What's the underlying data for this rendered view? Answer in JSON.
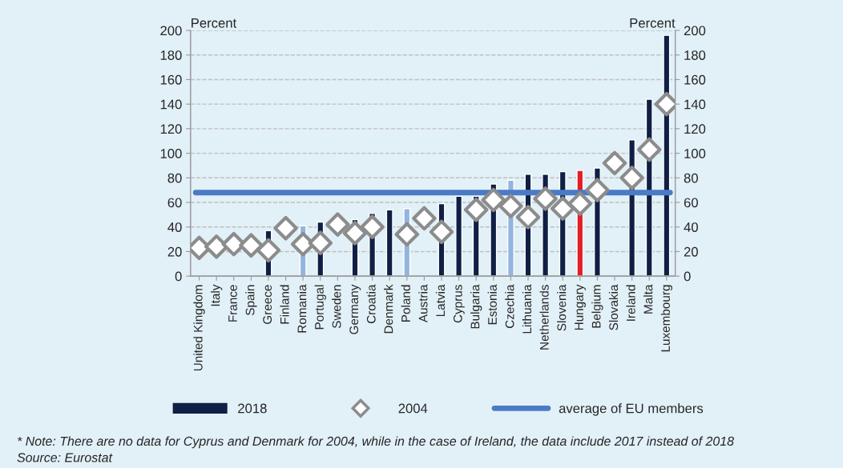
{
  "chart_data": {
    "type": "bar",
    "categories": [
      "United Kingdom",
      "Italy",
      "France",
      "Spain",
      "Greece",
      "Finland",
      "Romania",
      "Portugal",
      "Sweden",
      "Germany",
      "Croatia",
      "Denmark",
      "Poland",
      "Austria",
      "Latvia",
      "Cyprus",
      "Bulgaria",
      "Estonia",
      "Czechia",
      "Lithuania",
      "Netherlands",
      "Slovenia",
      "Hungary",
      "Belgium",
      "Slovakia",
      "Ireland",
      "Malta",
      "Luxembourg"
    ],
    "series": [
      {
        "name": "2018",
        "color": "#0f1f45",
        "colors": [
          "#0f1f45",
          "#0f1f45",
          "#0f1f45",
          "#0f1f45",
          "#0f1f45",
          "#0f1f45",
          "#92b4de",
          "#0f1f45",
          "#0f1f45",
          "#0f1f45",
          "#0f1f45",
          "#0f1f45",
          "#92b4de",
          "#0f1f45",
          "#0f1f45",
          "#0f1f45",
          "#0f1f45",
          "#0f1f45",
          "#92b4de",
          "#0f1f45",
          "#0f1f45",
          "#0f1f45",
          "#e31e24",
          "#0f1f45",
          "#92b4de",
          "#0f1f45",
          "#0f1f45",
          "#0f1f45"
        ],
        "values": [
          null,
          null,
          null,
          null,
          37,
          null,
          41,
          44,
          null,
          46,
          51,
          54,
          55,
          null,
          59,
          65,
          65,
          75,
          78,
          83,
          83,
          85,
          86,
          88,
          null,
          111,
          144,
          196
        ]
      },
      {
        "name": "2004",
        "type": "scatter",
        "color": "#8c8c8c",
        "marker": "diamond",
        "values": [
          23,
          24,
          26,
          25,
          21,
          39,
          26,
          27,
          42,
          35,
          40,
          null,
          34,
          47,
          36,
          null,
          54,
          62,
          57,
          48,
          63,
          55,
          59,
          70,
          92,
          80,
          103,
          140
        ]
      }
    ],
    "ref_lines": [
      {
        "axis": "y",
        "value": 68,
        "label": "average of EU members",
        "color": "#4a7bc4",
        "line_style": "solid"
      }
    ],
    "ylabel": "Percent",
    "y2label": "Percent",
    "ylim": [
      0,
      200
    ],
    "yticks": [
      0,
      20,
      40,
      60,
      80,
      100,
      120,
      140,
      160,
      180,
      200
    ],
    "y2lim": [
      0,
      200
    ],
    "y2ticks": [
      0,
      20,
      40,
      60,
      80,
      100,
      120,
      140,
      160,
      180,
      200
    ],
    "grid": "y",
    "legend": "bottom",
    "annotations": [
      "* Note: There are no data for Cyprus and Denmark for 2004, while in the case of Ireland, the data include 2017 instead of 2018",
      "Source: Eurostat"
    ]
  }
}
